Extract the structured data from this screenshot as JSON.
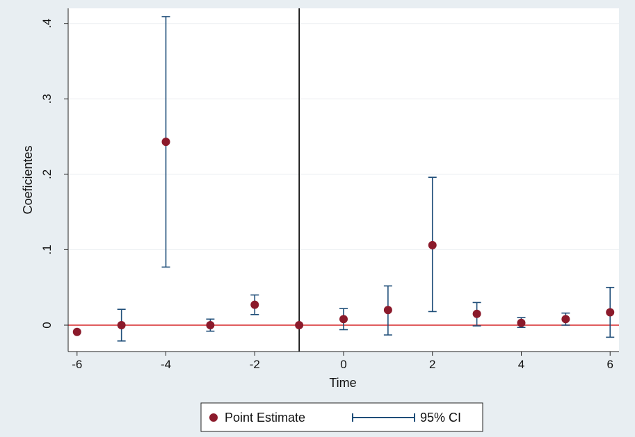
{
  "chart_data": {
    "type": "scatter",
    "title": "",
    "xlabel": "Time",
    "ylabel": "Coeficientes",
    "xlim": [
      -6.2,
      6.2
    ],
    "ylim": [
      -0.035,
      0.42
    ],
    "x_ticks": [
      -6,
      -4,
      -2,
      0,
      2,
      4,
      6
    ],
    "x_tick_labels": [
      "-6",
      "-4",
      "-2",
      "0",
      "2",
      "4",
      "6"
    ],
    "y_ticks": [
      0,
      0.1,
      0.2,
      0.3,
      0.4
    ],
    "y_tick_labels": [
      "0",
      ".1",
      ".2",
      ".3",
      ".4"
    ],
    "grid": true,
    "reference_lines": {
      "horizontal_y": 0,
      "vertical_x": -1
    },
    "series": [
      {
        "name": "Point Estimate",
        "color": "#8b1a2b",
        "x": [
          -6,
          -5,
          -4,
          -3,
          -2,
          -1,
          0,
          1,
          2,
          3,
          4,
          5,
          6
        ],
        "values": [
          -0.009,
          0.0,
          0.243,
          0.0,
          0.027,
          0.0,
          0.008,
          0.02,
          0.106,
          0.015,
          0.003,
          0.008,
          0.017
        ]
      },
      {
        "name": "95% CI",
        "color": "#1f4e79",
        "x": [
          -5,
          -4,
          -3,
          -2,
          0,
          1,
          2,
          3,
          4,
          5,
          6
        ],
        "lower": [
          -0.021,
          0.077,
          -0.008,
          0.014,
          -0.006,
          -0.013,
          0.018,
          -0.001,
          -0.003,
          0.0,
          -0.016
        ],
        "upper": [
          0.021,
          0.409,
          0.008,
          0.04,
          0.022,
          0.052,
          0.196,
          0.03,
          0.01,
          0.016,
          0.05
        ]
      }
    ],
    "legend": {
      "position": "bottom",
      "items": [
        "Point Estimate",
        "95% CI"
      ]
    },
    "colors": {
      "background": "#e8eef2",
      "plot_background": "#ffffff",
      "gridline": "#eaeef0",
      "zero_line": "#d62728",
      "vertical_line": "#000000",
      "point": "#8b1a2b",
      "ci": "#1f4e79"
    }
  }
}
